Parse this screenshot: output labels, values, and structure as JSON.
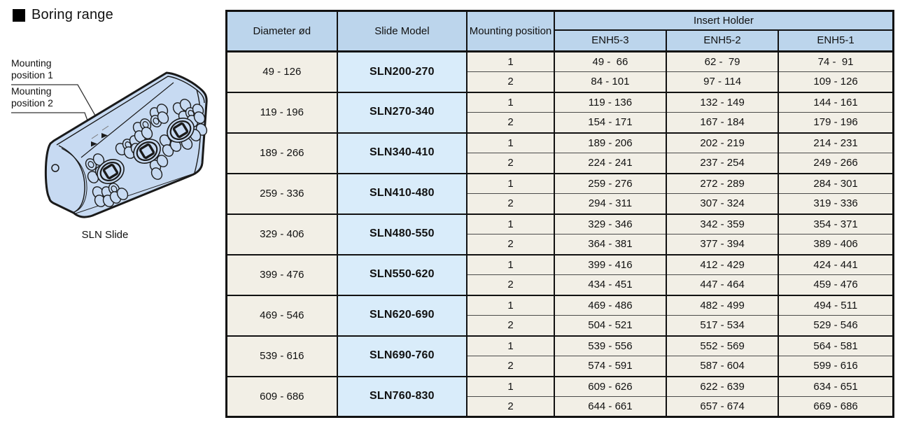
{
  "title": "Boring range",
  "illustration": {
    "labels": [
      "Mounting position 1",
      "Mounting position 2"
    ],
    "caption": "SLN Slide"
  },
  "table": {
    "headers": {
      "diameter": "Diameter ød",
      "slide_model": "Slide Model",
      "mounting_position": "Mounting position",
      "insert_holder": "Insert Holder",
      "holder_columns": [
        "ENH5-3",
        "ENH5-2",
        "ENH5-1"
      ]
    },
    "rows": [
      {
        "diameter": "49 - 126",
        "model": "SLN200-270",
        "positions": [
          {
            "pos": "1",
            "ranges": [
              "49 -  66",
              "62 -  79",
              "74 -  91"
            ]
          },
          {
            "pos": "2",
            "ranges": [
              "84 - 101",
              "97 - 114",
              "109 - 126"
            ]
          }
        ]
      },
      {
        "diameter": "119 - 196",
        "model": "SLN270-340",
        "positions": [
          {
            "pos": "1",
            "ranges": [
              "119 - 136",
              "132 - 149",
              "144 - 161"
            ]
          },
          {
            "pos": "2",
            "ranges": [
              "154 - 171",
              "167 - 184",
              "179 - 196"
            ]
          }
        ]
      },
      {
        "diameter": "189 - 266",
        "model": "SLN340-410",
        "positions": [
          {
            "pos": "1",
            "ranges": [
              "189 - 206",
              "202 - 219",
              "214 - 231"
            ]
          },
          {
            "pos": "2",
            "ranges": [
              "224 - 241",
              "237 - 254",
              "249 - 266"
            ]
          }
        ]
      },
      {
        "diameter": "259 - 336",
        "model": "SLN410-480",
        "positions": [
          {
            "pos": "1",
            "ranges": [
              "259 - 276",
              "272 - 289",
              "284 - 301"
            ]
          },
          {
            "pos": "2",
            "ranges": [
              "294 - 311",
              "307 - 324",
              "319 - 336"
            ]
          }
        ]
      },
      {
        "diameter": "329 - 406",
        "model": "SLN480-550",
        "positions": [
          {
            "pos": "1",
            "ranges": [
              "329 - 346",
              "342 - 359",
              "354 - 371"
            ]
          },
          {
            "pos": "2",
            "ranges": [
              "364 - 381",
              "377 - 394",
              "389 - 406"
            ]
          }
        ]
      },
      {
        "diameter": "399 - 476",
        "model": "SLN550-620",
        "positions": [
          {
            "pos": "1",
            "ranges": [
              "399 - 416",
              "412 - 429",
              "424 - 441"
            ]
          },
          {
            "pos": "2",
            "ranges": [
              "434 - 451",
              "447 - 464",
              "459 - 476"
            ]
          }
        ]
      },
      {
        "diameter": "469 - 546",
        "model": "SLN620-690",
        "positions": [
          {
            "pos": "1",
            "ranges": [
              "469 - 486",
              "482 - 499",
              "494 - 511"
            ]
          },
          {
            "pos": "2",
            "ranges": [
              "504 - 521",
              "517 - 534",
              "529 - 546"
            ]
          }
        ]
      },
      {
        "diameter": "539 - 616",
        "model": "SLN690-760",
        "positions": [
          {
            "pos": "1",
            "ranges": [
              "539 - 556",
              "552 - 569",
              "564 - 581"
            ]
          },
          {
            "pos": "2",
            "ranges": [
              "574 - 591",
              "587 - 604",
              "599 - 616"
            ]
          }
        ]
      },
      {
        "diameter": "609 - 686",
        "model": "SLN760-830",
        "positions": [
          {
            "pos": "1",
            "ranges": [
              "609 - 626",
              "622 - 639",
              "634 - 651"
            ]
          },
          {
            "pos": "2",
            "ranges": [
              "644 - 661",
              "657 - 674",
              "669 - 686"
            ]
          }
        ]
      }
    ]
  },
  "colors": {
    "header_bg": "#bcd5ec",
    "cell_bg": "#f2efe6",
    "model_bg": "#d9ecfa",
    "border": "#111111",
    "illustration_body": "#c7daf2"
  }
}
